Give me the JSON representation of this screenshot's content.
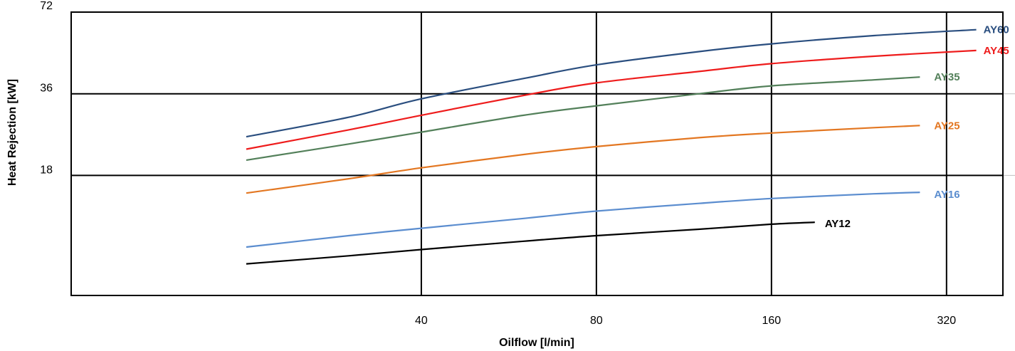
{
  "chart_data": {
    "type": "line",
    "x_scale": "log2",
    "y_scale": "log2",
    "xlabel": "Oilflow [l/min]",
    "ylabel": "Heat Rejection [kW]",
    "xlim": [
      10,
      400
    ],
    "ylim": [
      6.5,
      72
    ],
    "x_ticks": [
      40,
      80,
      160,
      320
    ],
    "y_ticks": [
      18,
      36,
      72
    ],
    "grid": true,
    "series": [
      {
        "name": "AY60",
        "color": "#2a4e7f",
        "x": [
          20,
          30,
          40,
          60,
          80,
          120,
          160,
          240,
          360
        ],
        "y": [
          25,
          29.5,
          34.5,
          41,
          46,
          51.5,
          55,
          59,
          62
        ]
      },
      {
        "name": "AY45",
        "color": "#ee1c1c",
        "x": [
          20,
          30,
          40,
          60,
          80,
          120,
          160,
          240,
          360
        ],
        "y": [
          22.5,
          26.5,
          30,
          35.5,
          39.5,
          43.5,
          46.5,
          49.5,
          52
        ]
      },
      {
        "name": "AY35",
        "color": "#53805a",
        "x": [
          20,
          30,
          40,
          60,
          80,
          120,
          160,
          240,
          288
        ],
        "y": [
          20.5,
          23.5,
          26,
          30,
          32.5,
          36,
          38.5,
          40.5,
          41.5
        ]
      },
      {
        "name": "AY25",
        "color": "#e37722",
        "x": [
          20,
          30,
          40,
          60,
          80,
          120,
          160,
          240,
          288
        ],
        "y": [
          15.5,
          17.5,
          19.2,
          21.5,
          23,
          24.8,
          25.8,
          27,
          27.5
        ]
      },
      {
        "name": "AY16",
        "color": "#5b8dcf",
        "x": [
          20,
          30,
          40,
          60,
          80,
          120,
          160,
          240,
          288
        ],
        "y": [
          9.8,
          10.8,
          11.5,
          12.5,
          13.3,
          14.2,
          14.8,
          15.4,
          15.6
        ]
      },
      {
        "name": "AY12",
        "color": "#000000",
        "x": [
          20,
          30,
          40,
          60,
          80,
          120,
          160,
          190
        ],
        "y": [
          8.5,
          9.1,
          9.6,
          10.3,
          10.8,
          11.4,
          11.9,
          12.1
        ]
      }
    ]
  }
}
